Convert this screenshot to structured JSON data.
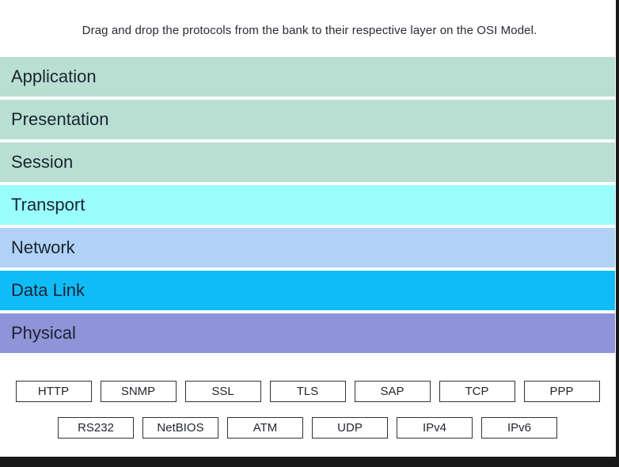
{
  "instruction": "Drag and drop the protocols from the bank to their respective layer on the OSI Model.",
  "osi_layers": [
    {
      "label": "Application",
      "color": "#b8dfd2"
    },
    {
      "label": "Presentation",
      "color": "#b8dfd2"
    },
    {
      "label": "Session",
      "color": "#b8dfd2"
    },
    {
      "label": "Transport",
      "color": "#9afefe"
    },
    {
      "label": "Network",
      "color": "#afd2f6"
    },
    {
      "label": "Data Link",
      "color": "#10bcf8"
    },
    {
      "label": "Physical",
      "color": "#8f93d8"
    }
  ],
  "protocol_bank": {
    "row1": [
      "HTTP",
      "SNMP",
      "SSL",
      "TLS",
      "SAP",
      "TCP",
      "PPP"
    ],
    "row2": [
      "RS232",
      "NetBIOS",
      "ATM",
      "UDP",
      "IPv4",
      "IPv6"
    ]
  },
  "frame_color": "#191919"
}
